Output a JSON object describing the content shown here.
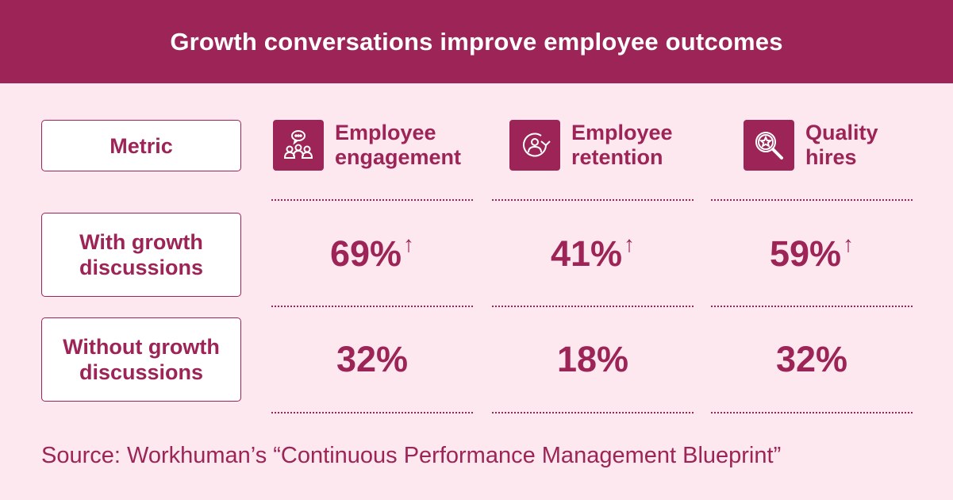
{
  "title": "Growth conversations improve employee outcomes",
  "metric_label": "Metric",
  "columns": [
    {
      "label": "Employee\nengagement",
      "icon": "chat-group-icon"
    },
    {
      "label": "Employee\nretention",
      "icon": "person-cycle-icon"
    },
    {
      "label": "Quality\nhires",
      "icon": "magnifier-star-icon"
    }
  ],
  "rows": [
    {
      "label": "With growth discussions",
      "values": [
        "69%",
        "41%",
        "59%"
      ],
      "arrow": "↑"
    },
    {
      "label": "Without growth discussions",
      "values": [
        "32%",
        "18%",
        "32%"
      ]
    }
  ],
  "source": "Source: Workhuman’s “Continuous Performance Management Blueprint”",
  "colors": {
    "accent": "#9c2456",
    "background": "#fce8ee",
    "card": "#ffffff"
  },
  "chart_data": {
    "type": "table",
    "title": "Growth conversations improve employee outcomes",
    "columns": [
      "Employee engagement",
      "Employee retention",
      "Quality hires"
    ],
    "rows": [
      "With growth discussions",
      "Without growth discussions"
    ],
    "values": [
      [
        69,
        41,
        59
      ],
      [
        32,
        18,
        32
      ]
    ],
    "unit": "%"
  }
}
